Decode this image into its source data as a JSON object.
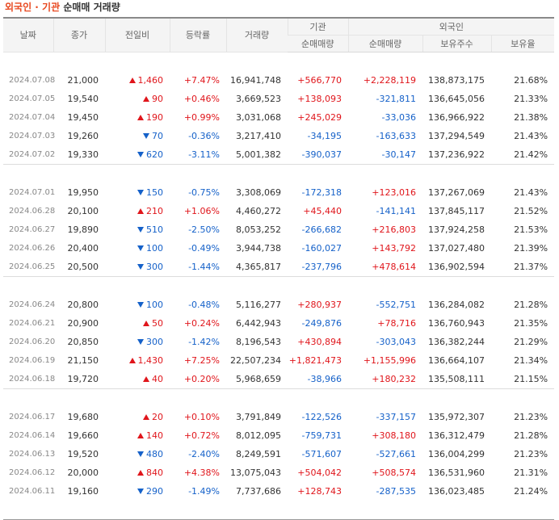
{
  "title": {
    "part1": "외국인 · 기관",
    "part2": "순매매 거래량"
  },
  "headers": {
    "date": "날짜",
    "close": "종가",
    "change": "전일비",
    "rate": "등락률",
    "volume": "거래량",
    "institution": "기관",
    "foreign": "외국인",
    "inst_net": "순매매량",
    "foreign_net": "순매매량",
    "holdings": "보유주수",
    "ratio": "보유율"
  },
  "colors": {
    "up": "#e0151b",
    "down": "#1561c9",
    "title_accent": "#e8481f"
  },
  "rows": [
    {
      "date": "2024.07.08",
      "close": "21,000",
      "dir": "up",
      "change": "1,460",
      "rate": "+7.47%",
      "volume": "16,941,748",
      "inst": "+566,770",
      "foreign": "+2,228,119",
      "holdings": "138,873,175",
      "ratio": "21.68%"
    },
    {
      "date": "2024.07.05",
      "close": "19,540",
      "dir": "up",
      "change": "90",
      "rate": "+0.46%",
      "volume": "3,669,523",
      "inst": "+138,093",
      "foreign": "-321,811",
      "holdings": "136,645,056",
      "ratio": "21.33%"
    },
    {
      "date": "2024.07.04",
      "close": "19,450",
      "dir": "up",
      "change": "190",
      "rate": "+0.99%",
      "volume": "3,031,068",
      "inst": "+245,029",
      "foreign": "-33,036",
      "holdings": "136,966,922",
      "ratio": "21.38%"
    },
    {
      "date": "2024.07.03",
      "close": "19,260",
      "dir": "down",
      "change": "70",
      "rate": "-0.36%",
      "volume": "3,217,410",
      "inst": "-34,195",
      "foreign": "-163,633",
      "holdings": "137,294,549",
      "ratio": "21.43%"
    },
    {
      "date": "2024.07.02",
      "close": "19,330",
      "dir": "down",
      "change": "620",
      "rate": "-3.11%",
      "volume": "5,001,382",
      "inst": "-390,037",
      "foreign": "-30,147",
      "holdings": "137,236,922",
      "ratio": "21.42%"
    },
    {
      "date": "2024.07.01",
      "close": "19,950",
      "dir": "down",
      "change": "150",
      "rate": "-0.75%",
      "volume": "3,308,069",
      "inst": "-172,318",
      "foreign": "+123,016",
      "holdings": "137,267,069",
      "ratio": "21.43%"
    },
    {
      "date": "2024.06.28",
      "close": "20,100",
      "dir": "up",
      "change": "210",
      "rate": "+1.06%",
      "volume": "4,460,272",
      "inst": "+45,440",
      "foreign": "-141,141",
      "holdings": "137,845,117",
      "ratio": "21.52%"
    },
    {
      "date": "2024.06.27",
      "close": "19,890",
      "dir": "down",
      "change": "510",
      "rate": "-2.50%",
      "volume": "8,053,252",
      "inst": "-266,682",
      "foreign": "+216,803",
      "holdings": "137,924,258",
      "ratio": "21.53%"
    },
    {
      "date": "2024.06.26",
      "close": "20,400",
      "dir": "down",
      "change": "100",
      "rate": "-0.49%",
      "volume": "3,944,738",
      "inst": "-160,027",
      "foreign": "+143,792",
      "holdings": "137,027,480",
      "ratio": "21.39%"
    },
    {
      "date": "2024.06.25",
      "close": "20,500",
      "dir": "down",
      "change": "300",
      "rate": "-1.44%",
      "volume": "4,365,817",
      "inst": "-237,796",
      "foreign": "+478,614",
      "holdings": "136,902,594",
      "ratio": "21.37%"
    },
    {
      "date": "2024.06.24",
      "close": "20,800",
      "dir": "down",
      "change": "100",
      "rate": "-0.48%",
      "volume": "5,116,277",
      "inst": "+280,937",
      "foreign": "-552,751",
      "holdings": "136,284,082",
      "ratio": "21.28%"
    },
    {
      "date": "2024.06.21",
      "close": "20,900",
      "dir": "up",
      "change": "50",
      "rate": "+0.24%",
      "volume": "6,442,943",
      "inst": "-249,876",
      "foreign": "+78,716",
      "holdings": "136,760,943",
      "ratio": "21.35%"
    },
    {
      "date": "2024.06.20",
      "close": "20,850",
      "dir": "down",
      "change": "300",
      "rate": "-1.42%",
      "volume": "8,196,543",
      "inst": "+430,894",
      "foreign": "-303,043",
      "holdings": "136,382,244",
      "ratio": "21.29%"
    },
    {
      "date": "2024.06.19",
      "close": "21,150",
      "dir": "up",
      "change": "1,430",
      "rate": "+7.25%",
      "volume": "22,507,234",
      "inst": "+1,821,473",
      "foreign": "+1,155,996",
      "holdings": "136,664,107",
      "ratio": "21.34%"
    },
    {
      "date": "2024.06.18",
      "close": "19,720",
      "dir": "up",
      "change": "40",
      "rate": "+0.20%",
      "volume": "5,968,659",
      "inst": "-38,966",
      "foreign": "+180,232",
      "holdings": "135,508,111",
      "ratio": "21.15%"
    },
    {
      "date": "2024.06.17",
      "close": "19,680",
      "dir": "up",
      "change": "20",
      "rate": "+0.10%",
      "volume": "3,791,849",
      "inst": "-122,526",
      "foreign": "-337,157",
      "holdings": "135,972,307",
      "ratio": "21.23%"
    },
    {
      "date": "2024.06.14",
      "close": "19,660",
      "dir": "up",
      "change": "140",
      "rate": "+0.72%",
      "volume": "8,012,095",
      "inst": "-759,731",
      "foreign": "+308,180",
      "holdings": "136,312,479",
      "ratio": "21.28%"
    },
    {
      "date": "2024.06.13",
      "close": "19,520",
      "dir": "down",
      "change": "480",
      "rate": "-2.40%",
      "volume": "8,249,591",
      "inst": "-571,607",
      "foreign": "-527,661",
      "holdings": "136,004,299",
      "ratio": "21.23%"
    },
    {
      "date": "2024.06.12",
      "close": "20,000",
      "dir": "up",
      "change": "840",
      "rate": "+4.38%",
      "volume": "13,075,043",
      "inst": "+504,042",
      "foreign": "+508,574",
      "holdings": "136,531,960",
      "ratio": "21.31%"
    },
    {
      "date": "2024.06.11",
      "close": "19,160",
      "dir": "down",
      "change": "290",
      "rate": "-1.49%",
      "volume": "7,737,686",
      "inst": "+128,743",
      "foreign": "-287,535",
      "holdings": "136,023,485",
      "ratio": "21.24%"
    }
  ]
}
